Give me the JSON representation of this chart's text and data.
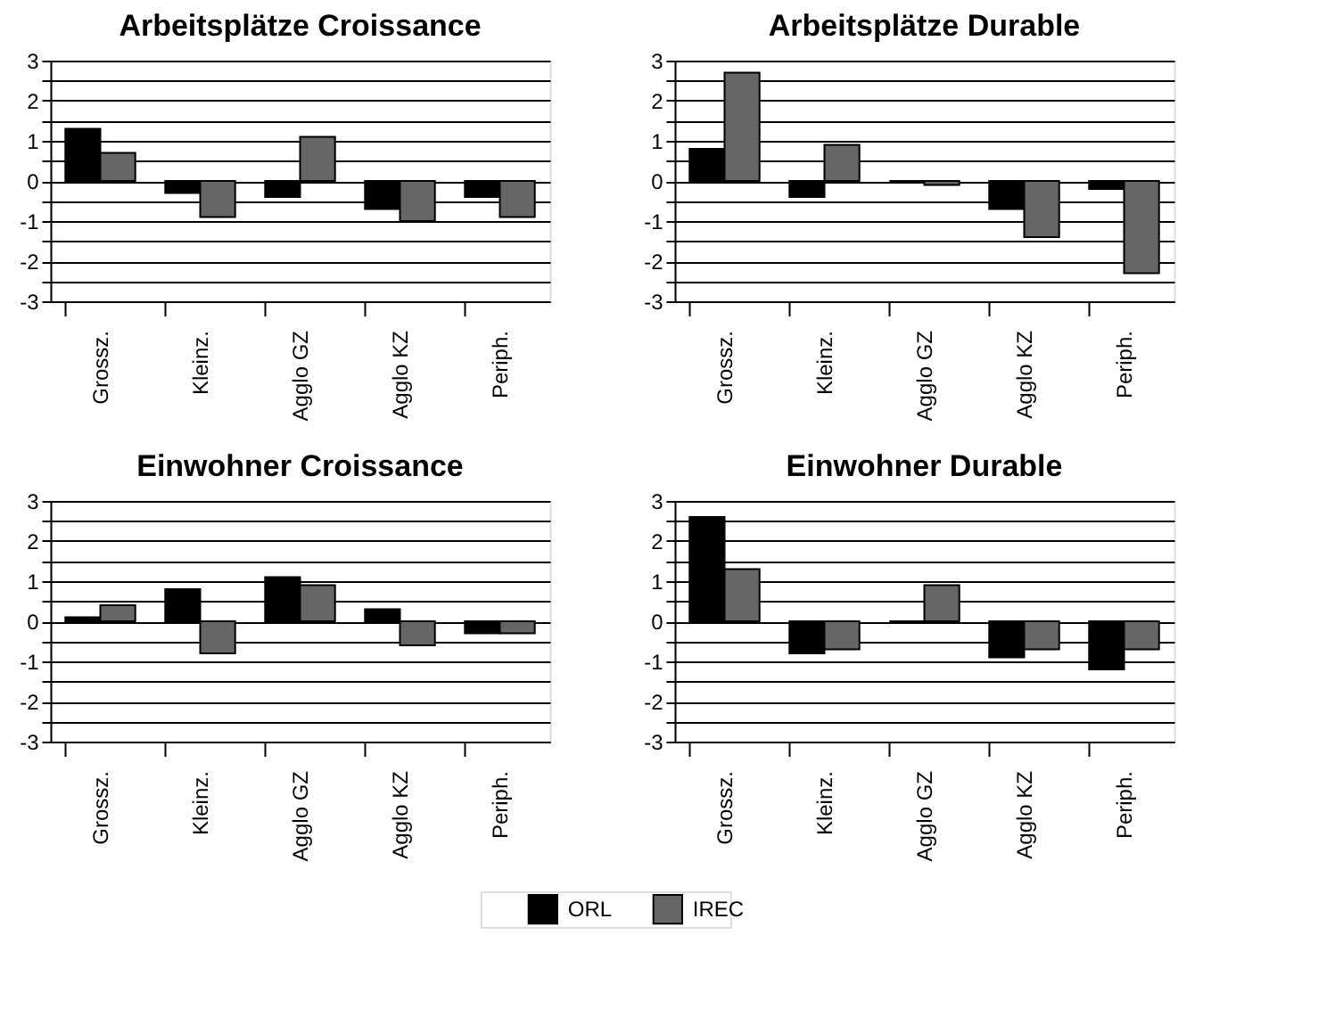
{
  "chart_data": [
    {
      "type": "bar",
      "title": "Arbeitsplätze Croissance",
      "categories": [
        "Grossz.",
        "Kleinz.",
        "Agglo GZ",
        "Agglo KZ",
        "Periph."
      ],
      "ylim": [
        -3,
        3
      ],
      "yticks": [
        -3,
        {
          "value": -2.5,
          "label": null
        },
        -2,
        {
          "value": -1.5,
          "label": null
        },
        -1,
        {
          "value": -0.5,
          "label": null
        },
        0,
        {
          "value": 0.5,
          "label": null
        },
        1,
        {
          "value": 1.5,
          "label": null
        },
        2,
        {
          "value": 2.5,
          "label": null
        },
        3
      ],
      "grid": "y",
      "series": [
        {
          "color": "#000000",
          "values": [
            1.3,
            -0.3,
            -0.4,
            -0.7,
            -0.4
          ]
        },
        {
          "color": "#666666",
          "values": [
            0.7,
            -0.9,
            1.1,
            -1.0,
            -0.9
          ]
        }
      ]
    },
    {
      "type": "bar",
      "title": "Arbeitsplätze Durable",
      "categories": [
        "Grossz.",
        "Kleinz.",
        "Agglo GZ",
        "Agglo KZ",
        "Periph."
      ],
      "ylim": [
        -3,
        3
      ],
      "yticks": [
        -3,
        {
          "value": -2.5,
          "label": null
        },
        -2,
        {
          "value": -1.5,
          "label": null
        },
        -1,
        {
          "value": -0.5,
          "label": null
        },
        0,
        {
          "value": 0.5,
          "label": null
        },
        1,
        {
          "value": 1.5,
          "label": null
        },
        2,
        {
          "value": 2.5,
          "label": null
        },
        3
      ],
      "grid": "y",
      "series": [
        {
          "color": "#000000",
          "values": [
            0.8,
            -0.4,
            0.0,
            -0.7,
            -0.2
          ]
        },
        {
          "color": "#666666",
          "values": [
            2.7,
            0.9,
            -0.1,
            -1.4,
            -2.3
          ]
        }
      ]
    },
    {
      "type": "bar",
      "title": "Einwohner Croissance",
      "categories": [
        "Grossz.",
        "Kleinz.",
        "Agglo GZ",
        "Agglo KZ",
        "Periph."
      ],
      "ylim": [
        -3,
        3
      ],
      "yticks": [
        -3,
        {
          "value": -2.5,
          "label": null
        },
        -2,
        {
          "value": -1.5,
          "label": null
        },
        -1,
        {
          "value": -0.5,
          "label": null
        },
        0,
        {
          "value": 0.5,
          "label": null
        },
        1,
        {
          "value": 1.5,
          "label": null
        },
        2,
        {
          "value": 2.5,
          "label": null
        },
        3
      ],
      "grid": "y",
      "series": [
        {
          "color": "#000000",
          "values": [
            0.1,
            0.8,
            1.1,
            0.3,
            -0.3
          ]
        },
        {
          "color": "#666666",
          "values": [
            0.4,
            -0.8,
            0.9,
            -0.6,
            -0.3
          ]
        }
      ]
    },
    {
      "type": "bar",
      "title": "Einwohner Durable",
      "categories": [
        "Grossz.",
        "Kleinz.",
        "Agglo GZ",
        "Agglo KZ",
        "Periph."
      ],
      "ylim": [
        -3,
        3
      ],
      "yticks": [
        -3,
        {
          "value": -2.5,
          "label": null
        },
        -2,
        {
          "value": -1.5,
          "label": null
        },
        -1,
        {
          "value": -0.5,
          "label": null
        },
        0,
        {
          "value": 0.5,
          "label": null
        },
        1,
        {
          "value": 1.5,
          "label": null
        },
        2,
        {
          "value": 2.5,
          "label": null
        },
        3
      ],
      "grid": "y",
      "legend": "bottom",
      "series": [
        {
          "name": "ORL",
          "color": "#000000",
          "values": [
            2.6,
            -0.8,
            0.0,
            -0.9,
            -1.2
          ]
        },
        {
          "name": "IREC",
          "color": "#666666",
          "values": [
            1.3,
            -0.7,
            0.9,
            -0.7,
            -0.7
          ]
        }
      ]
    }
  ]
}
